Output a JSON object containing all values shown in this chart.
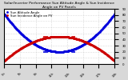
{
  "title": "Solar/Inverter Performance Sun Altitude Angle & Sun Incidence Angle on PV Panels",
  "title_fontsize": 3.2,
  "background_color": "#d8d8d8",
  "plot_bg_color": "#ffffff",
  "grid_color": "#bbbbbb",
  "blue_label": "Sun Altitude Angle",
  "red_label": "Sun Incidence Angle on PV",
  "ylim": [
    0,
    90
  ],
  "yticks": [
    0,
    10,
    20,
    30,
    40,
    50,
    60,
    70,
    80,
    90
  ],
  "xlim": [
    5,
    19
  ],
  "xtick_labels": [
    "5h",
    "7h",
    "9h",
    "11h",
    "13h",
    "15h",
    "17h",
    "19h"
  ],
  "xtick_positions": [
    5,
    7,
    9,
    11,
    13,
    15,
    17,
    19
  ],
  "blue_color": "#0000dd",
  "red_color": "#cc0000",
  "blue_hline": 20,
  "red_hline": 45,
  "blue_hline_xstart": 10,
  "blue_hline_xend": 14,
  "red_hline_xstart": 10,
  "red_hline_xend": 14,
  "legend_fontsize": 2.8,
  "tick_fontsize": 2.8
}
